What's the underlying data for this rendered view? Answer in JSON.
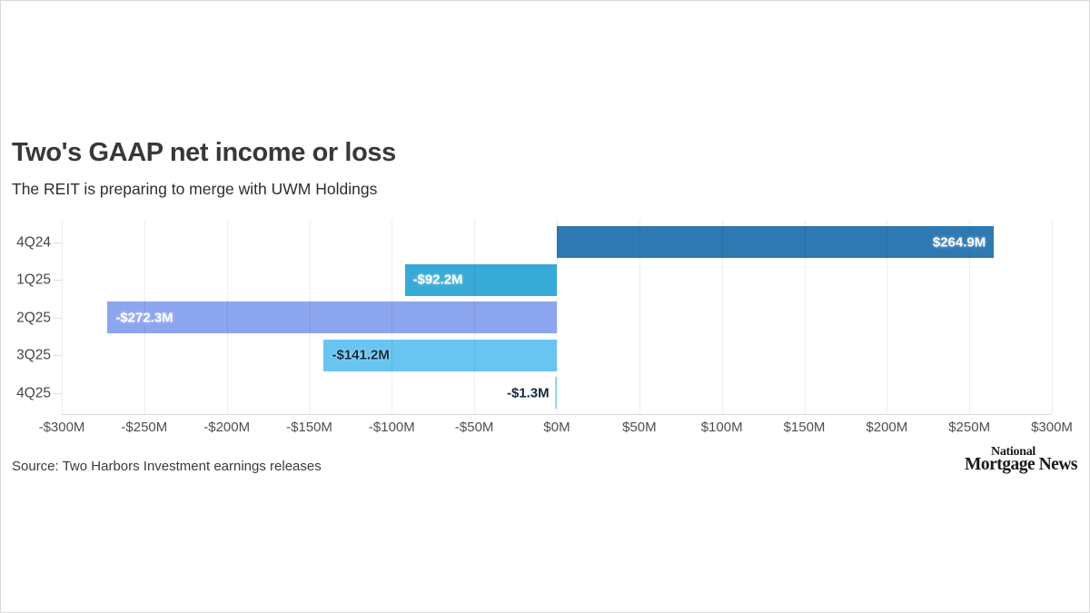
{
  "page": {
    "title": "Two's GAAP net income or loss",
    "subtitle": "The REIT is preparing to merge with UWM Holdings",
    "source": "Source: Two Harbors Investment earnings releases",
    "logo": {
      "line1": "National",
      "line2": "Mortgage News"
    }
  },
  "chart_data": {
    "type": "bar",
    "orientation": "horizontal",
    "title": "Two's GAAP net income or loss",
    "subtitle": "The REIT is preparing to merge with UWM Holdings",
    "unit": "millions USD",
    "categories": [
      "4Q24",
      "1Q25",
      "2Q25",
      "3Q25",
      "4Q25"
    ],
    "values": [
      264.9,
      -92.2,
      -272.3,
      -141.2,
      -1.3
    ],
    "value_labels": [
      "$264.9M",
      "-$92.2M",
      "-$272.3M",
      "-$141.2M",
      "-$1.3M"
    ],
    "bar_colors": [
      "#2f79b3",
      "#38aad8",
      "#8ca5ef",
      "#68c5f1",
      "#8fdcec"
    ],
    "value_label_colors": [
      "#ffffff",
      "#ffffff",
      "#ffffff",
      "#13293d",
      "#13293d"
    ],
    "value_label_placement": [
      "inside-end",
      "inside-start",
      "inside-start",
      "inside-start",
      "outside-start"
    ],
    "xlim": [
      -300,
      300
    ],
    "x_tick_values": [
      -300,
      -250,
      -200,
      -150,
      -100,
      -50,
      0,
      50,
      100,
      150,
      200,
      250,
      300
    ],
    "x_tick_labels": [
      "-$300M",
      "-$250M",
      "-$200M",
      "-$150M",
      "-$100M",
      "-$50M",
      "$0M",
      "$50M",
      "$100M",
      "$150M",
      "$200M",
      "$250M",
      "$300M"
    ],
    "grid": true,
    "legend": "none",
    "source": "Source: Two Harbors Investment earnings releases"
  }
}
